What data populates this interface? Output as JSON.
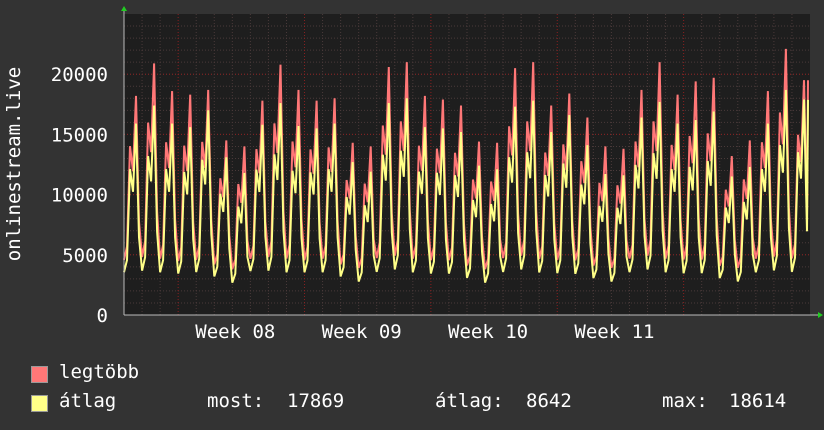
{
  "colors": {
    "background": "#333333",
    "canvas": "#1e1e1e",
    "max_series": "#ff7777",
    "avg_series": "#ffff88",
    "grid_minor": "#4a3a3a",
    "grid_major": "#8a2020",
    "axis": "#bbbbbb",
    "arrow": "#22cc22"
  },
  "legend": {
    "max_label": "legtöbb",
    "avg_label": "átlag",
    "stats": {
      "most_label": "most:",
      "most_value": "17869",
      "avg_label": "átlag:",
      "avg_value": "8642",
      "max_label": "max:",
      "max_value": "18614"
    }
  },
  "chart_data": {
    "type": "line",
    "ylabel": "onlinestream.live",
    "ylim": [
      0,
      25000
    ],
    "yticks": [
      0,
      5000,
      10000,
      15000,
      20000
    ],
    "x_labels": [
      "Week 08",
      "Week 09",
      "Week 10",
      "Week 11"
    ],
    "grid": true,
    "samples_per_day": 6,
    "daily_peaks": {
      "max": [
        18200,
        20900,
        18600,
        18300,
        18700,
        14500,
        14000,
        17800,
        20800,
        18700,
        17800,
        18000,
        14300,
        14000,
        20600,
        21000,
        18200,
        17900,
        17400,
        14400,
        14300,
        20500,
        21000,
        17400,
        18400,
        16400,
        14000,
        13800,
        18700,
        21000,
        18300,
        19400,
        19700,
        13200,
        14500,
        18600,
        22100,
        19500
      ],
      "avg": [
        15900,
        17400,
        15900,
        15600,
        17000,
        13100,
        11800,
        15800,
        17600,
        15700,
        15500,
        15900,
        12700,
        11900,
        17600,
        18000,
        15600,
        15500,
        15200,
        12400,
        12100,
        17300,
        17800,
        15200,
        16600,
        14100,
        11700,
        11600,
        16400,
        17700,
        15900,
        16200,
        16900,
        11500,
        12300,
        15900,
        18700,
        17900
      ]
    },
    "daily_troughs": {
      "max": [
        4300,
        4500,
        4400,
        4200,
        4300,
        4000,
        3600,
        4400,
        4500,
        4400,
        4300,
        4400,
        4000,
        3700,
        4400,
        4600,
        4400,
        4300,
        4300,
        3900,
        3600,
        4400,
        4600,
        4400,
        4300,
        4300,
        3900,
        3700,
        4400,
        4600,
        4400,
        4300,
        4300,
        3900,
        3700,
        4400,
        4500,
        4400
      ],
      "avg": [
        3300,
        3400,
        3300,
        3200,
        3300,
        3000,
        2500,
        3400,
        3400,
        3300,
        3300,
        3300,
        3000,
        2600,
        3300,
        3500,
        3300,
        3200,
        3200,
        2900,
        2500,
        3300,
        3500,
        3300,
        3200,
        3200,
        2900,
        2600,
        3300,
        3500,
        3300,
        3200,
        3200,
        2900,
        2600,
        3300,
        3400,
        3300
      ]
    },
    "last_value": {
      "max": 19500,
      "avg": 17869
    }
  }
}
